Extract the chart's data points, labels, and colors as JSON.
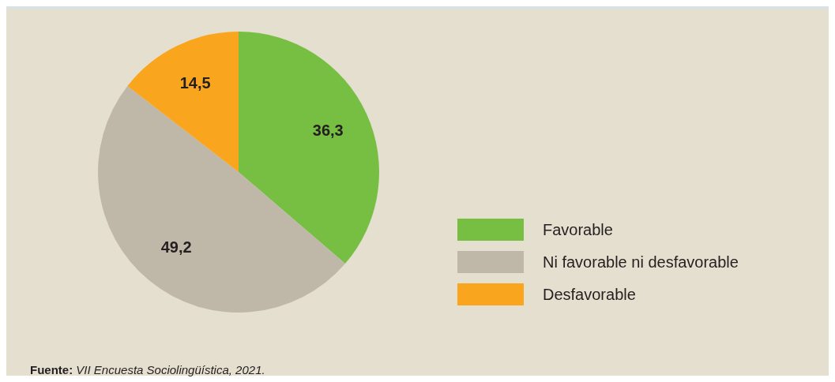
{
  "chart_data": {
    "type": "pie",
    "categories": [
      "Favorable",
      "Ni favorable ni desfavorable",
      "Desfavorable"
    ],
    "values": [
      36.3,
      49.2,
      14.5
    ],
    "colors": [
      "#77bf43",
      "#bfb8a8",
      "#f9a61e"
    ],
    "value_labels": [
      "36,3",
      "49,2",
      "14,5"
    ],
    "legend": "right",
    "annotations": [
      "Fuente: VII Encuesta Sociolingüística, 2021."
    ]
  }
}
